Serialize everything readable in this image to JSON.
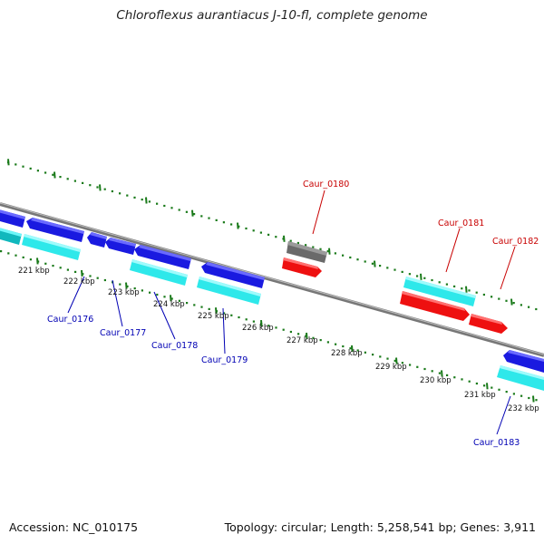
{
  "title": "Chloroflexus aurantiacus J-10-fl, complete genome",
  "footer": {
    "accession": "Accession: NC_010175",
    "summary": "Topology: circular; Length: 5,258,541 bp; Genes: 3,911"
  },
  "colors": {
    "backbone": "#777777",
    "ticks": "#1a7a1a",
    "label_blue": "#0000b4",
    "label_red": "#c80000",
    "gene_blue": "#1a1ae0",
    "gene_cyan": "#2ee8ea",
    "gene_red": "#ee1010",
    "gene_gray": "#6a6a6a"
  },
  "kbp_labels": [
    "221 kbp",
    "222 kbp",
    "223 kbp",
    "224 kbp",
    "225 kbp",
    "226 kbp",
    "227 kbp",
    "228 kbp",
    "229 kbp",
    "230 kbp",
    "231 kbp",
    "232 kbp"
  ],
  "gene_labels": [
    "Caur_0176",
    "Caur_0177",
    "Caur_0178",
    "Caur_0179",
    "Caur_0180",
    "Caur_0181",
    "Caur_0182",
    "Caur_0183"
  ]
}
